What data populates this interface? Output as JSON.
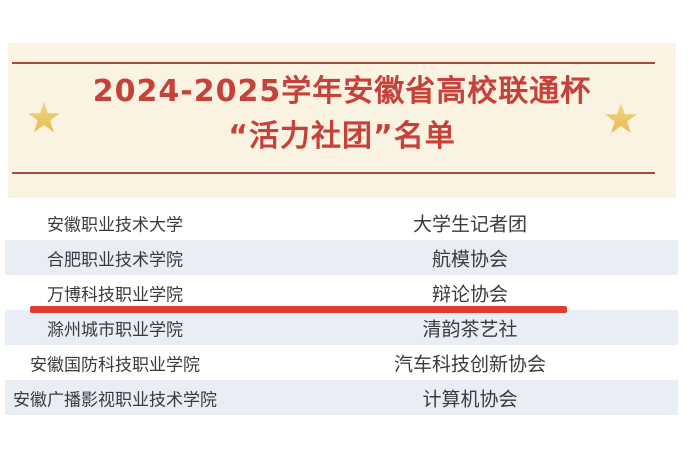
{
  "header": {
    "title_line1": "2024-2025学年安徽省高校联通杯",
    "title_line2": "“活力社团”名单",
    "star_icon": "★",
    "colors": {
      "banner_background": "#fbf3e2",
      "rule_line": "#a7493f",
      "title_text": "#c5413a",
      "star_gold": "#e6bd58"
    }
  },
  "table": {
    "columns": [
      "school",
      "club"
    ],
    "rows": [
      {
        "school": "安徽职业技术大学",
        "club": "大学生记者团",
        "highlighted": false
      },
      {
        "school": "合肥职业技术学院",
        "club": "航模协会",
        "highlighted": false
      },
      {
        "school": "万博科技职业学院",
        "club": "辩论协会",
        "highlighted": true
      },
      {
        "school": "滁州城市职业学院",
        "club": "清韵茶艺社",
        "highlighted": false
      },
      {
        "school": "安徽国防科技职业学院",
        "club": "汽车科技创新协会",
        "highlighted": false
      },
      {
        "school": "安徽广播影视职业技术学院",
        "club": "计算机协会",
        "highlighted": false
      }
    ],
    "colors": {
      "alt_row_background": "#e9edf6",
      "row_text": "#3b3b3b",
      "highlight_underline": "#e23c31"
    }
  }
}
